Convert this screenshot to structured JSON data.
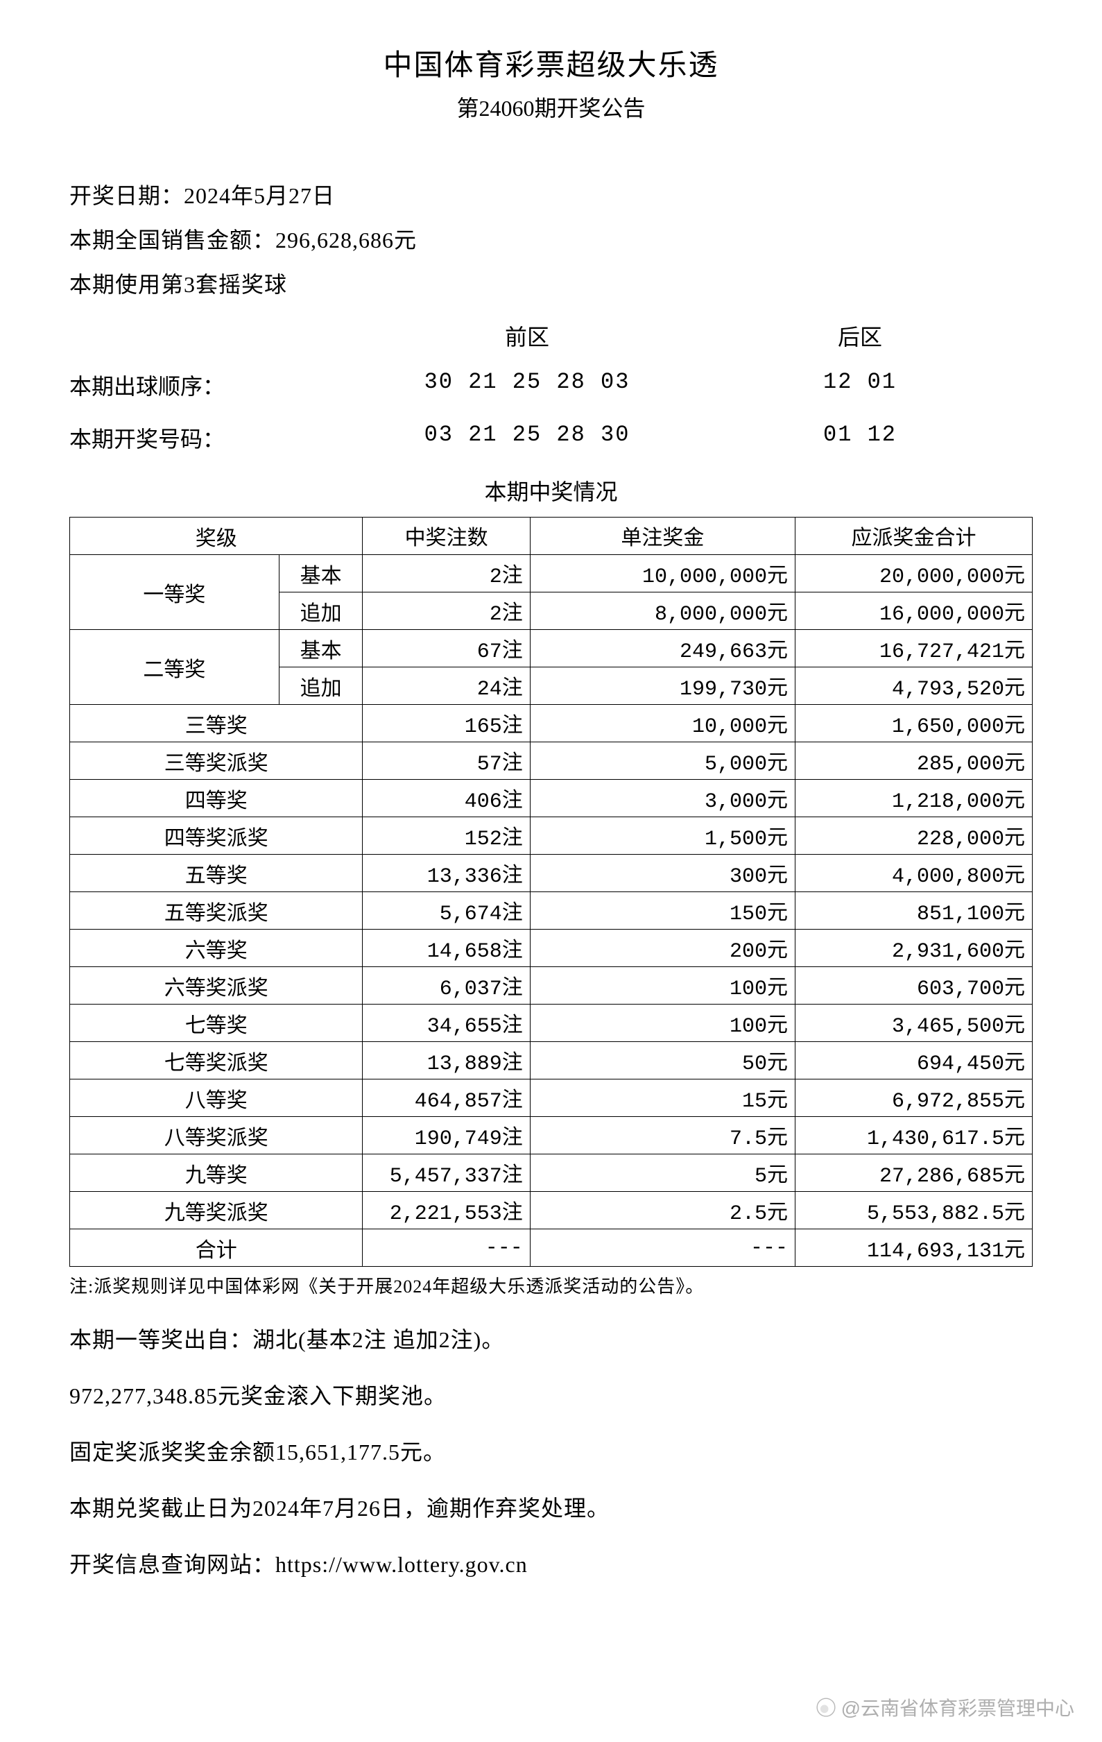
{
  "header": {
    "title": "中国体育彩票超级大乐透",
    "subtitle": "第24060期开奖公告"
  },
  "info": {
    "draw_date_label": "开奖日期：",
    "draw_date": "2024年5月27日",
    "sales_label": "本期全国销售金额：",
    "sales_amount": "296,628,686元",
    "ballset_label": "本期使用第3套摇奖球"
  },
  "numbers": {
    "front_label": "前区",
    "back_label": "后区",
    "draw_order_label": "本期出球顺序：",
    "draw_order_front": "30 21 25 28 03",
    "draw_order_back": "12 01",
    "winning_label": "本期开奖号码：",
    "winning_front": "03 21 25 28 30",
    "winning_back": "01 12"
  },
  "prize_section_title": "本期中奖情况",
  "prize_table": {
    "headers": {
      "level": "奖级",
      "count": "中奖注数",
      "unit": "单注奖金",
      "total": "应派奖金合计"
    },
    "grouped": [
      {
        "level": "一等奖",
        "rows": [
          {
            "sub": "基本",
            "count": "2注",
            "unit": "10,000,000元",
            "total": "20,000,000元"
          },
          {
            "sub": "追加",
            "count": "2注",
            "unit": "8,000,000元",
            "total": "16,000,000元"
          }
        ]
      },
      {
        "level": "二等奖",
        "rows": [
          {
            "sub": "基本",
            "count": "67注",
            "unit": "249,663元",
            "total": "16,727,421元"
          },
          {
            "sub": "追加",
            "count": "24注",
            "unit": "199,730元",
            "total": "4,793,520元"
          }
        ]
      }
    ],
    "simple": [
      {
        "level": "三等奖",
        "count": "165注",
        "unit": "10,000元",
        "total": "1,650,000元"
      },
      {
        "level": "三等奖派奖",
        "count": "57注",
        "unit": "5,000元",
        "total": "285,000元"
      },
      {
        "level": "四等奖",
        "count": "406注",
        "unit": "3,000元",
        "total": "1,218,000元"
      },
      {
        "level": "四等奖派奖",
        "count": "152注",
        "unit": "1,500元",
        "total": "228,000元"
      },
      {
        "level": "五等奖",
        "count": "13,336注",
        "unit": "300元",
        "total": "4,000,800元"
      },
      {
        "level": "五等奖派奖",
        "count": "5,674注",
        "unit": "150元",
        "total": "851,100元"
      },
      {
        "level": "六等奖",
        "count": "14,658注",
        "unit": "200元",
        "total": "2,931,600元"
      },
      {
        "level": "六等奖派奖",
        "count": "6,037注",
        "unit": "100元",
        "total": "603,700元"
      },
      {
        "level": "七等奖",
        "count": "34,655注",
        "unit": "100元",
        "total": "3,465,500元"
      },
      {
        "level": "七等奖派奖",
        "count": "13,889注",
        "unit": "50元",
        "total": "694,450元"
      },
      {
        "level": "八等奖",
        "count": "464,857注",
        "unit": "15元",
        "total": "6,972,855元"
      },
      {
        "level": "八等奖派奖",
        "count": "190,749注",
        "unit": "7.5元",
        "total": "1,430,617.5元"
      },
      {
        "level": "九等奖",
        "count": "5,457,337注",
        "unit": "5元",
        "total": "27,286,685元"
      },
      {
        "level": "九等奖派奖",
        "count": "2,221,553注",
        "unit": "2.5元",
        "total": "5,553,882.5元"
      }
    ],
    "total_row": {
      "level": "合计",
      "count": "---",
      "unit": "---",
      "total": "114,693,131元"
    }
  },
  "footnote": "注:派奖规则详见中国体彩网《关于开展2024年超级大乐透派奖活动的公告》。",
  "bottom": {
    "line1": "本期一等奖出自：湖北(基本2注 追加2注)。",
    "line2": "972,277,348.85元奖金滚入下期奖池。",
    "line3": "固定奖派奖奖金余额15,651,177.5元。",
    "line4": "本期兑奖截止日为2024年7月26日，逾期作弃奖处理。",
    "line5": "开奖信息查询网站：https://www.lottery.gov.cn"
  },
  "watermark": "@云南省体育彩票管理中心"
}
